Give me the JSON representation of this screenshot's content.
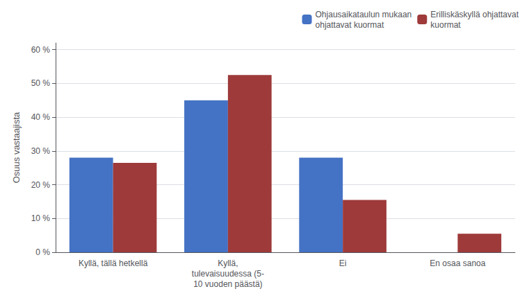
{
  "chart_data": {
    "type": "bar",
    "categories": [
      "Kyllä, tällä hetkellä",
      "Kyllä,\ntulevaisuudessa (5-\n10 vuoden päästä)",
      "Ei",
      "En osaa sanoa"
    ],
    "series": [
      {
        "name": "Ohjausaikataulun mukaan\nohjattavat kuormat",
        "color": "#4472C4",
        "values": [
          28,
          45,
          28,
          0
        ]
      },
      {
        "name": "Erilliskäskyllä ohjattavat\nkuormat",
        "color": "#9E3A3A",
        "values": [
          26.5,
          52.5,
          15.5,
          5.5
        ]
      }
    ],
    "ylabel": "Osuus vastaajista",
    "ylim": [
      0,
      62
    ],
    "yticks": [
      {
        "value": 0,
        "label": "0 %"
      },
      {
        "value": 10,
        "label": "10 %"
      },
      {
        "value": 20,
        "label": "20 %"
      },
      {
        "value": 30,
        "label": "30 %"
      },
      {
        "value": 40,
        "label": "40 %"
      },
      {
        "value": 50,
        "label": "50 %"
      },
      {
        "value": 60,
        "label": "60 %"
      }
    ],
    "grid": true,
    "legend": "upper right"
  }
}
